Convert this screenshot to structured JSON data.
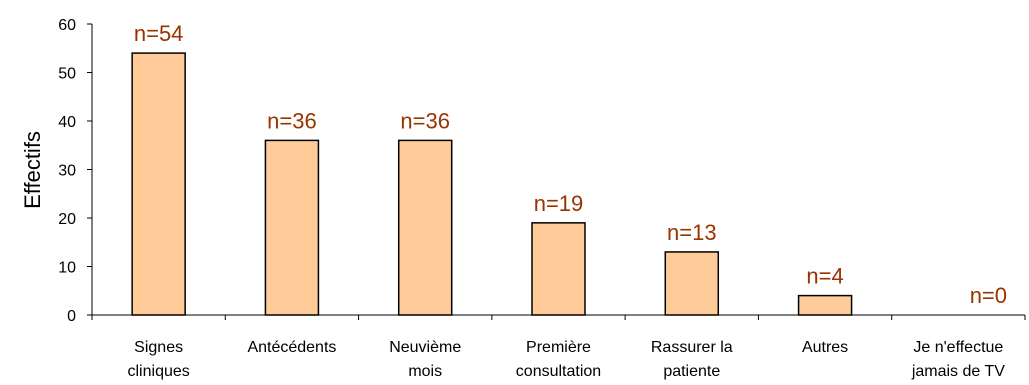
{
  "chart_data": {
    "type": "bar",
    "categories": [
      [
        "Signes",
        "cliniques"
      ],
      [
        "Antécédents"
      ],
      [
        "Neuvième",
        "mois"
      ],
      [
        "Première",
        "consultation"
      ],
      [
        "Rassurer la",
        "patiente"
      ],
      [
        "Autres"
      ],
      [
        "Je n'effectue",
        "jamais de TV"
      ]
    ],
    "values": [
      54,
      36,
      36,
      19,
      13,
      4,
      0
    ],
    "data_labels": [
      "n=54",
      "n=36",
      "n=36",
      "n=19",
      "n=13",
      "n=4",
      "n=0"
    ],
    "title": "",
    "xlabel": "",
    "ylabel": "Effectifs",
    "ylim": [
      0,
      60
    ],
    "yticks": [
      0,
      10,
      20,
      30,
      40,
      50,
      60
    ],
    "grid": false,
    "legend": "none",
    "colors": {
      "bar_fill": "#FFCC99",
      "bar_stroke": "#000000",
      "data_label": "#993300",
      "axis": "#000000"
    }
  }
}
